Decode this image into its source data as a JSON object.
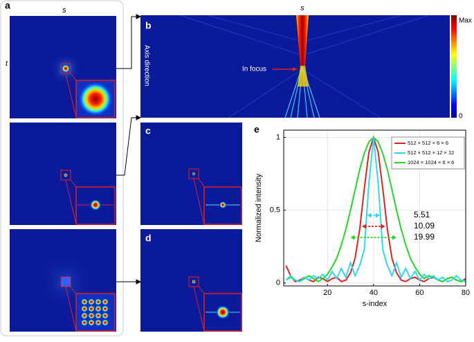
{
  "figure": {
    "panel_labels": [
      "a",
      "b",
      "c",
      "d",
      "e"
    ],
    "s_label_a": "s",
    "t_label": "t",
    "s_label_b": "s",
    "colorbar": {
      "max": "Max",
      "min": "0"
    },
    "axis_direction": "Axis direction",
    "in_focus": "In focus"
  },
  "chart_data": {
    "type": "line",
    "xlabel": "s-index",
    "ylabel": "Normalized intensity",
    "x": [
      2,
      4,
      6,
      8,
      10,
      12,
      14,
      16,
      18,
      20,
      22,
      24,
      26,
      28,
      30,
      32,
      34,
      36,
      38,
      40,
      42,
      44,
      46,
      48,
      50,
      52,
      54,
      56,
      58,
      60,
      62,
      64,
      66,
      68,
      70,
      72,
      74,
      76,
      78,
      80
    ],
    "series": [
      {
        "name": "512 × 512 × 6 × 6",
        "color": "#e0201c",
        "fwhm": 10.09,
        "values": [
          0.12,
          0.05,
          0.01,
          0.02,
          0.04,
          0.02,
          0.01,
          0.04,
          0.03,
          0.01,
          0.03,
          0.04,
          0.01,
          0.02,
          0.07,
          0.17,
          0.37,
          0.65,
          0.9,
          1,
          0.9,
          0.65,
          0.37,
          0.17,
          0.07,
          0.02,
          0.01,
          0.03,
          0.04,
          0.02,
          0.01,
          0.03,
          0.04,
          0.02,
          0.01,
          0.03,
          0.04,
          0.02,
          0.01,
          0.03
        ]
      },
      {
        "name": "512 × 512 × 12 × 12",
        "color": "#2fd7f0",
        "fwhm": 5.51,
        "values": [
          0.02,
          0.05,
          0.02,
          0.01,
          0.04,
          0.02,
          0.05,
          0.03,
          0.06,
          0.02,
          0.08,
          0.03,
          0.1,
          0.04,
          0.14,
          0.05,
          0.12,
          0.23,
          0.69,
          1,
          0.69,
          0.23,
          0.12,
          0.05,
          0.14,
          0.04,
          0.1,
          0.03,
          0.08,
          0.02,
          0.06,
          0.03,
          0.05,
          0.02,
          0.04,
          0.01,
          0.02,
          0.05,
          0.02,
          0.01
        ]
      },
      {
        "name": "1024 × 1024 × 6 × 6",
        "color": "#20d820",
        "fwhm": 19.99,
        "values": [
          0.02,
          0.04,
          0.02,
          0.01,
          0.03,
          0.05,
          0.03,
          0.01,
          0.03,
          0.06,
          0.11,
          0.17,
          0.26,
          0.37,
          0.5,
          0.64,
          0.78,
          0.89,
          0.97,
          1,
          0.97,
          0.89,
          0.78,
          0.64,
          0.5,
          0.37,
          0.26,
          0.17,
          0.11,
          0.06,
          0.03,
          0.05,
          0.04,
          0.02,
          0.01,
          0.03,
          0.04,
          0.02,
          0.01,
          0.02
        ]
      }
    ],
    "xlim": [
      1,
      80
    ],
    "ylim": [
      -0.02,
      1.05
    ],
    "xticks": [
      20,
      40,
      60,
      80
    ],
    "yticks": [
      0,
      0.5,
      1
    ],
    "grid": true
  }
}
